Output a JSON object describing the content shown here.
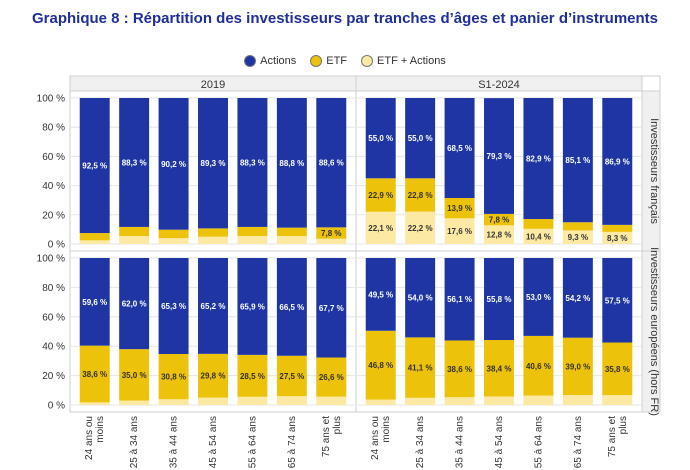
{
  "title": "Graphique 8 : Répartition des investisseurs par tranches d’âges et panier d’instruments",
  "legend": [
    {
      "name": "Actions",
      "color": "#1e35a3"
    },
    {
      "name": "ETF",
      "color": "#edc20b"
    },
    {
      "name": "ETF + Actions",
      "color": "#fbe9a4"
    }
  ],
  "chart_data": {
    "type": "bar",
    "stacked": true,
    "title": "Graphique 8 : Répartition des investisseurs par tranches d’âges et panier d’instruments",
    "ylim": [
      0,
      100
    ],
    "yticks": [
      "0 %",
      "20 %",
      "40 %",
      "60 %",
      "80 %",
      "100 %"
    ],
    "categories": [
      [
        "24 ans ou",
        "moins"
      ],
      [
        "25 à 34 ans"
      ],
      [
        "35 à 44 ans"
      ],
      [
        "45 à 54 ans"
      ],
      [
        "55 à 64 ans"
      ],
      [
        "65 à 74 ans"
      ],
      [
        "75 ans et",
        "plus"
      ]
    ],
    "columns": [
      "2019",
      "S1-2024"
    ],
    "rows": [
      "Investisseurs français",
      "Investisseurs européens (hors FR)"
    ],
    "panels": [
      {
        "period": "2019",
        "group": "Investisseurs français",
        "series": [
          {
            "name": "ETF + Actions",
            "values": [
              2.5,
              5.5,
              4.0,
              5.0,
              5.5,
              5.5,
              3.6
            ]
          },
          {
            "name": "ETF",
            "values": [
              5.0,
              6.2,
              5.8,
              5.7,
              6.2,
              5.7,
              7.8
            ]
          },
          {
            "name": "Actions",
            "values": [
              92.5,
              88.3,
              90.2,
              89.3,
              88.3,
              88.8,
              88.6
            ]
          }
        ],
        "labels": {
          "Actions": [
            "92,5 %",
            "88,3 %",
            "90,2 %",
            "89,3 %",
            "88,3 %",
            "88,8 %",
            "88,6 %"
          ],
          "ETF": [
            "",
            "",
            "",
            "",
            "",
            "",
            "7,8 %"
          ],
          "ETF + Actions": [
            "",
            "",
            "",
            "",
            "",
            "",
            ""
          ]
        }
      },
      {
        "period": "S1-2024",
        "group": "Investisseurs français",
        "series": [
          {
            "name": "ETF + Actions",
            "values": [
              22.1,
              22.2,
              17.6,
              12.8,
              10.4,
              9.3,
              8.3
            ]
          },
          {
            "name": "ETF",
            "values": [
              22.9,
              22.8,
              13.9,
              7.8,
              6.7,
              5.6,
              4.8
            ]
          },
          {
            "name": "Actions",
            "values": [
              55.0,
              55.0,
              68.5,
              79.3,
              82.9,
              85.1,
              86.9
            ]
          }
        ],
        "labels": {
          "Actions": [
            "55,0 %",
            "55,0 %",
            "68,5 %",
            "79,3 %",
            "82,9 %",
            "85,1 %",
            "86,9 %"
          ],
          "ETF": [
            "22,9 %",
            "22,8 %",
            "13,9 %",
            "7,8 %",
            "",
            "",
            ""
          ],
          "ETF + Actions": [
            "22,1 %",
            "22,2 %",
            "17,6 %",
            "12,8 %",
            "10,4 %",
            "9,3 %",
            "8,3 %"
          ]
        }
      },
      {
        "period": "2019",
        "group": "Investisseurs européens (hors FR)",
        "series": [
          {
            "name": "ETF + Actions",
            "values": [
              1.8,
              3.0,
              3.9,
              5.0,
              5.6,
              6.0,
              5.7
            ]
          },
          {
            "name": "ETF",
            "values": [
              38.6,
              35.0,
              30.8,
              29.8,
              28.5,
              27.5,
              26.6
            ]
          },
          {
            "name": "Actions",
            "values": [
              59.6,
              62.0,
              65.3,
              65.2,
              65.9,
              66.5,
              67.7
            ]
          }
        ],
        "labels": {
          "Actions": [
            "59,6 %",
            "62,0 %",
            "65,3 %",
            "65,2 %",
            "65,9 %",
            "66,5 %",
            "67,7 %"
          ],
          "ETF": [
            "38,6 %",
            "35,0 %",
            "30,8 %",
            "29,8 %",
            "28,5 %",
            "27,5 %",
            "26,6 %"
          ],
          "ETF + Actions": [
            "",
            "",
            "",
            "",
            "",
            "",
            ""
          ]
        }
      },
      {
        "period": "S1-2024",
        "group": "Investisseurs européens (hors FR)",
        "series": [
          {
            "name": "ETF + Actions",
            "values": [
              3.7,
              4.9,
              5.3,
              5.8,
              6.4,
              6.8,
              6.7
            ]
          },
          {
            "name": "ETF",
            "values": [
              46.8,
              41.1,
              38.6,
              38.4,
              40.6,
              39.0,
              35.8
            ]
          },
          {
            "name": "Actions",
            "values": [
              49.5,
              54.0,
              56.1,
              55.8,
              53.0,
              54.2,
              57.5
            ]
          }
        ],
        "labels": {
          "Actions": [
            "49,5 %",
            "54,0 %",
            "56,1 %",
            "55,8 %",
            "53,0 %",
            "54,2 %",
            "57,5 %"
          ],
          "ETF": [
            "46,8 %",
            "41,1 %",
            "38,6 %",
            "38,4 %",
            "40,6 %",
            "39,0 %",
            "35,8 %"
          ],
          "ETF + Actions": [
            "",
            "",
            "",
            "",
            "",
            "",
            ""
          ]
        }
      }
    ]
  }
}
